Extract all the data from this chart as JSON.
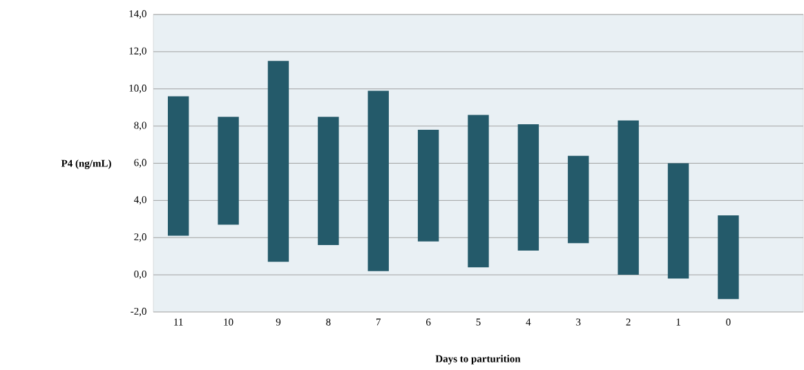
{
  "chart_data": {
    "type": "bar",
    "xlabel": "Days to parturition",
    "ylabel": "P4 (ng/mL)",
    "categories": [
      "11",
      "10",
      "9",
      "8",
      "7",
      "6",
      "5",
      "4",
      "3",
      "2",
      "1",
      "0",
      null
    ],
    "base": [
      2.1,
      2.7,
      0.7,
      1.6,
      0.2,
      1.8,
      0.4,
      1.3,
      1.7,
      0.0,
      -0.2,
      -1.3,
      null
    ],
    "values": [
      7.5,
      5.8,
      10.8,
      6.9,
      9.7,
      6.0,
      8.2,
      6.8,
      4.7,
      8.3,
      6.2,
      4.5,
      null
    ],
    "color": "#245a6a",
    "ylim": [
      -2,
      14
    ],
    "yticks": [
      {
        "value": -2,
        "label": "-2,0"
      },
      {
        "value": 0,
        "label": "0,0"
      },
      {
        "value": 2,
        "label": "2,0"
      },
      {
        "value": 4,
        "label": "4,0"
      },
      {
        "value": 6,
        "label": "6,0"
      },
      {
        "value": 8,
        "label": "8,0"
      },
      {
        "value": 10,
        "label": "10,0"
      },
      {
        "value": 12,
        "label": "12,0"
      },
      {
        "value": 14,
        "label": "14,0"
      }
    ],
    "grid": "y"
  }
}
